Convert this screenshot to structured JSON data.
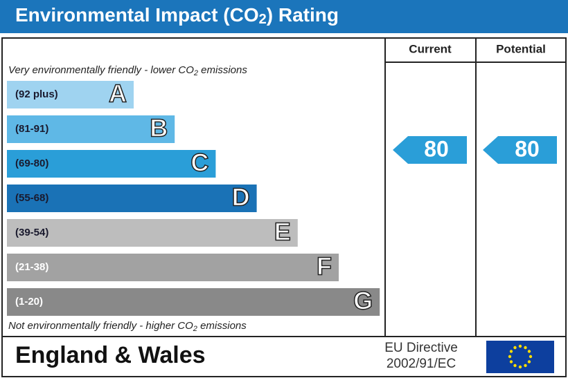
{
  "header": {
    "title": {
      "before": "Environmental Impact (CO",
      "sub": "2",
      "after": ") Rating"
    }
  },
  "columns": {
    "current": "Current",
    "potential": "Potential"
  },
  "top_note": {
    "before": "Very environmentally friendly - lower CO",
    "sub": "2",
    "after": " emissions"
  },
  "bottom_note": {
    "before": "Not environmentally friendly - higher CO",
    "sub": "2",
    "after": " emissions"
  },
  "bands": [
    {
      "range": "(92 plus)",
      "letter": "A",
      "color": "#9fd3f0"
    },
    {
      "range": "(81-91)",
      "letter": "B",
      "color": "#5fb8e6"
    },
    {
      "range": "(69-80)",
      "letter": "C",
      "color": "#2a9ed8"
    },
    {
      "range": "(55-68)",
      "letter": "D",
      "color": "#1a72b6"
    },
    {
      "range": "(39-54)",
      "letter": "E",
      "color": "#bdbdbd"
    },
    {
      "range": "(21-38)",
      "letter": "F",
      "color": "#a2a2a2"
    },
    {
      "range": "(1-20)",
      "letter": "G",
      "color": "#898989"
    }
  ],
  "ratings": {
    "current": "80",
    "potential": "80"
  },
  "footer": {
    "region": "England & Wales",
    "directive_line1": "EU Directive",
    "directive_line2": "2002/91/EC"
  }
}
